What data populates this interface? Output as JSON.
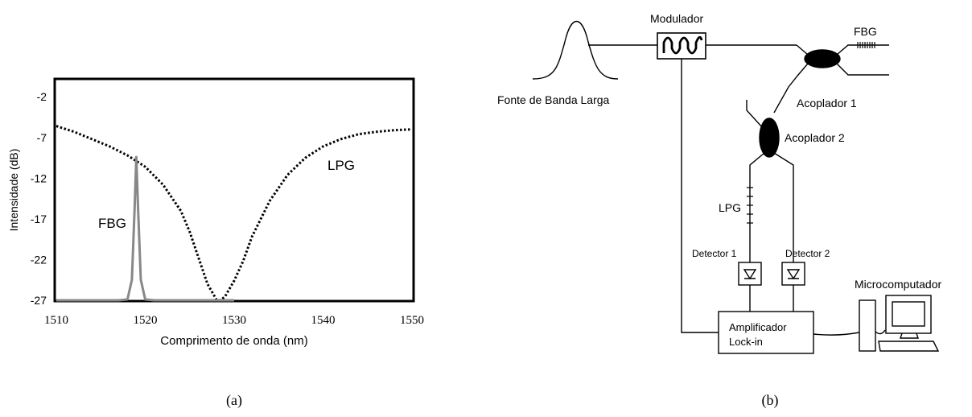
{
  "chart_data": {
    "type": "line",
    "title": "",
    "xlabel": "Comprimento de onda (nm)",
    "ylabel": "Intensidade (dB)",
    "xlim": [
      1510,
      1550
    ],
    "ylim": [
      -27,
      0
    ],
    "x_ticks": [
      "1510",
      "1520",
      "1530",
      "1540",
      "1550"
    ],
    "y_ticks": [
      "-2",
      "-7",
      "-12",
      "-17",
      "-22",
      "-27"
    ],
    "grid": false,
    "series": [
      {
        "name": "LPG",
        "style": "dotted",
        "color": "#000000",
        "x": [
          1510,
          1512,
          1514,
          1516,
          1518,
          1520,
          1522,
          1524,
          1525,
          1526,
          1527,
          1528,
          1528.5,
          1529,
          1530,
          1531,
          1532,
          1534,
          1536,
          1538,
          1540,
          1542,
          1544,
          1546,
          1548,
          1550
        ],
        "y": [
          -5.6,
          -6.3,
          -7.2,
          -8.1,
          -9.2,
          -10.6,
          -12.8,
          -16.0,
          -18.6,
          -21.8,
          -25.0,
          -26.9,
          -27.0,
          -26.5,
          -24.6,
          -22.2,
          -19.2,
          -14.8,
          -11.6,
          -9.5,
          -8.1,
          -7.2,
          -6.6,
          -6.3,
          -6.1,
          -6.0
        ]
      },
      {
        "name": "FBG",
        "style": "solid",
        "color": "#888888",
        "x": [
          1510,
          1517,
          1518,
          1518.5,
          1518.8,
          1519,
          1519.2,
          1519.5,
          1520,
          1521,
          1530
        ],
        "y": [
          -27,
          -27,
          -26.9,
          -24.5,
          -16.0,
          -9.4,
          -16.0,
          -24.5,
          -26.9,
          -27,
          -27
        ]
      }
    ]
  },
  "labels": {
    "lpg_curve": "LPG",
    "fbg_curve": "FBG",
    "panel_a": "(a)",
    "panel_b": "(b)"
  },
  "diagram": {
    "source": "Fonte de Banda Larga",
    "modulator": "Modulador",
    "fbg": "FBG",
    "coupler1": "Acoplador 1",
    "coupler2": "Acoplador 2",
    "lpg": "LPG",
    "detector1": "Detector 1",
    "detector2": "Detector 2",
    "amp_line1": "Amplificador",
    "amp_line2": "Lock-in",
    "computer": "Microcomputador"
  }
}
